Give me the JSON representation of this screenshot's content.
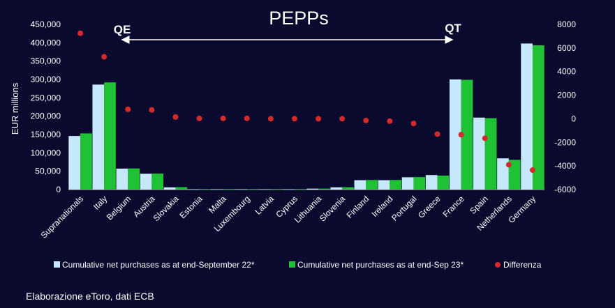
{
  "chart_data": {
    "type": "bar",
    "title": "PEPPs",
    "ylabel": "EUR millions",
    "ylim": [
      0,
      450000
    ],
    "y2lim": [
      -6000,
      8000
    ],
    "yticks": [
      "0",
      "50,000",
      "100,000",
      "150,000",
      "200,000",
      "250,000",
      "300,000",
      "350,000",
      "400,000",
      "450,000"
    ],
    "y2ticks": [
      "-6000",
      "-4000",
      "-2000",
      "0",
      "2000",
      "4000",
      "6000",
      "8000"
    ],
    "categories": [
      "Supranationals",
      "Italy",
      "Belgium",
      "Austria",
      "Slovakia",
      "Estonia",
      "Malta",
      "Luxembourg",
      "Latvia",
      "Cyprus",
      "Lithuania",
      "Slovenia",
      "Finland",
      "Ireland",
      "Portugal",
      "Greece",
      "France",
      "Spain",
      "Netherlands",
      "Germany"
    ],
    "series": [
      {
        "name": "Cumulative net purchases as at end-September 22*",
        "type": "bar",
        "axis": "left",
        "color": "#c5e8fb",
        "values": [
          146000,
          286000,
          57000,
          43000,
          6000,
          300,
          300,
          300,
          300,
          300,
          2500,
          6000,
          25500,
          25500,
          33500,
          39500,
          300000,
          196000,
          85000,
          398000
        ]
      },
      {
        "name": "Cumulative net purchases as at end-Sep 23*",
        "type": "bar",
        "axis": "left",
        "color": "#1ec234",
        "values": [
          153000,
          292000,
          57500,
          43500,
          6500,
          300,
          300,
          300,
          300,
          300,
          2600,
          6300,
          26000,
          26000,
          34000,
          38000,
          299000,
          194500,
          81000,
          393000
        ]
      },
      {
        "name": "Differenza",
        "type": "scatter",
        "axis": "right",
        "color": "#d42a2a",
        "values": [
          7250,
          5250,
          800,
          750,
          150,
          30,
          30,
          30,
          0,
          0,
          0,
          0,
          -150,
          -200,
          -400,
          -1300,
          -1350,
          -1650,
          -3900,
          -4350
        ]
      }
    ],
    "annotations": {
      "left": "QE",
      "right": "QT"
    },
    "legend_position": "bottom"
  },
  "footer": "Elaborazione eToro, dati ECB"
}
